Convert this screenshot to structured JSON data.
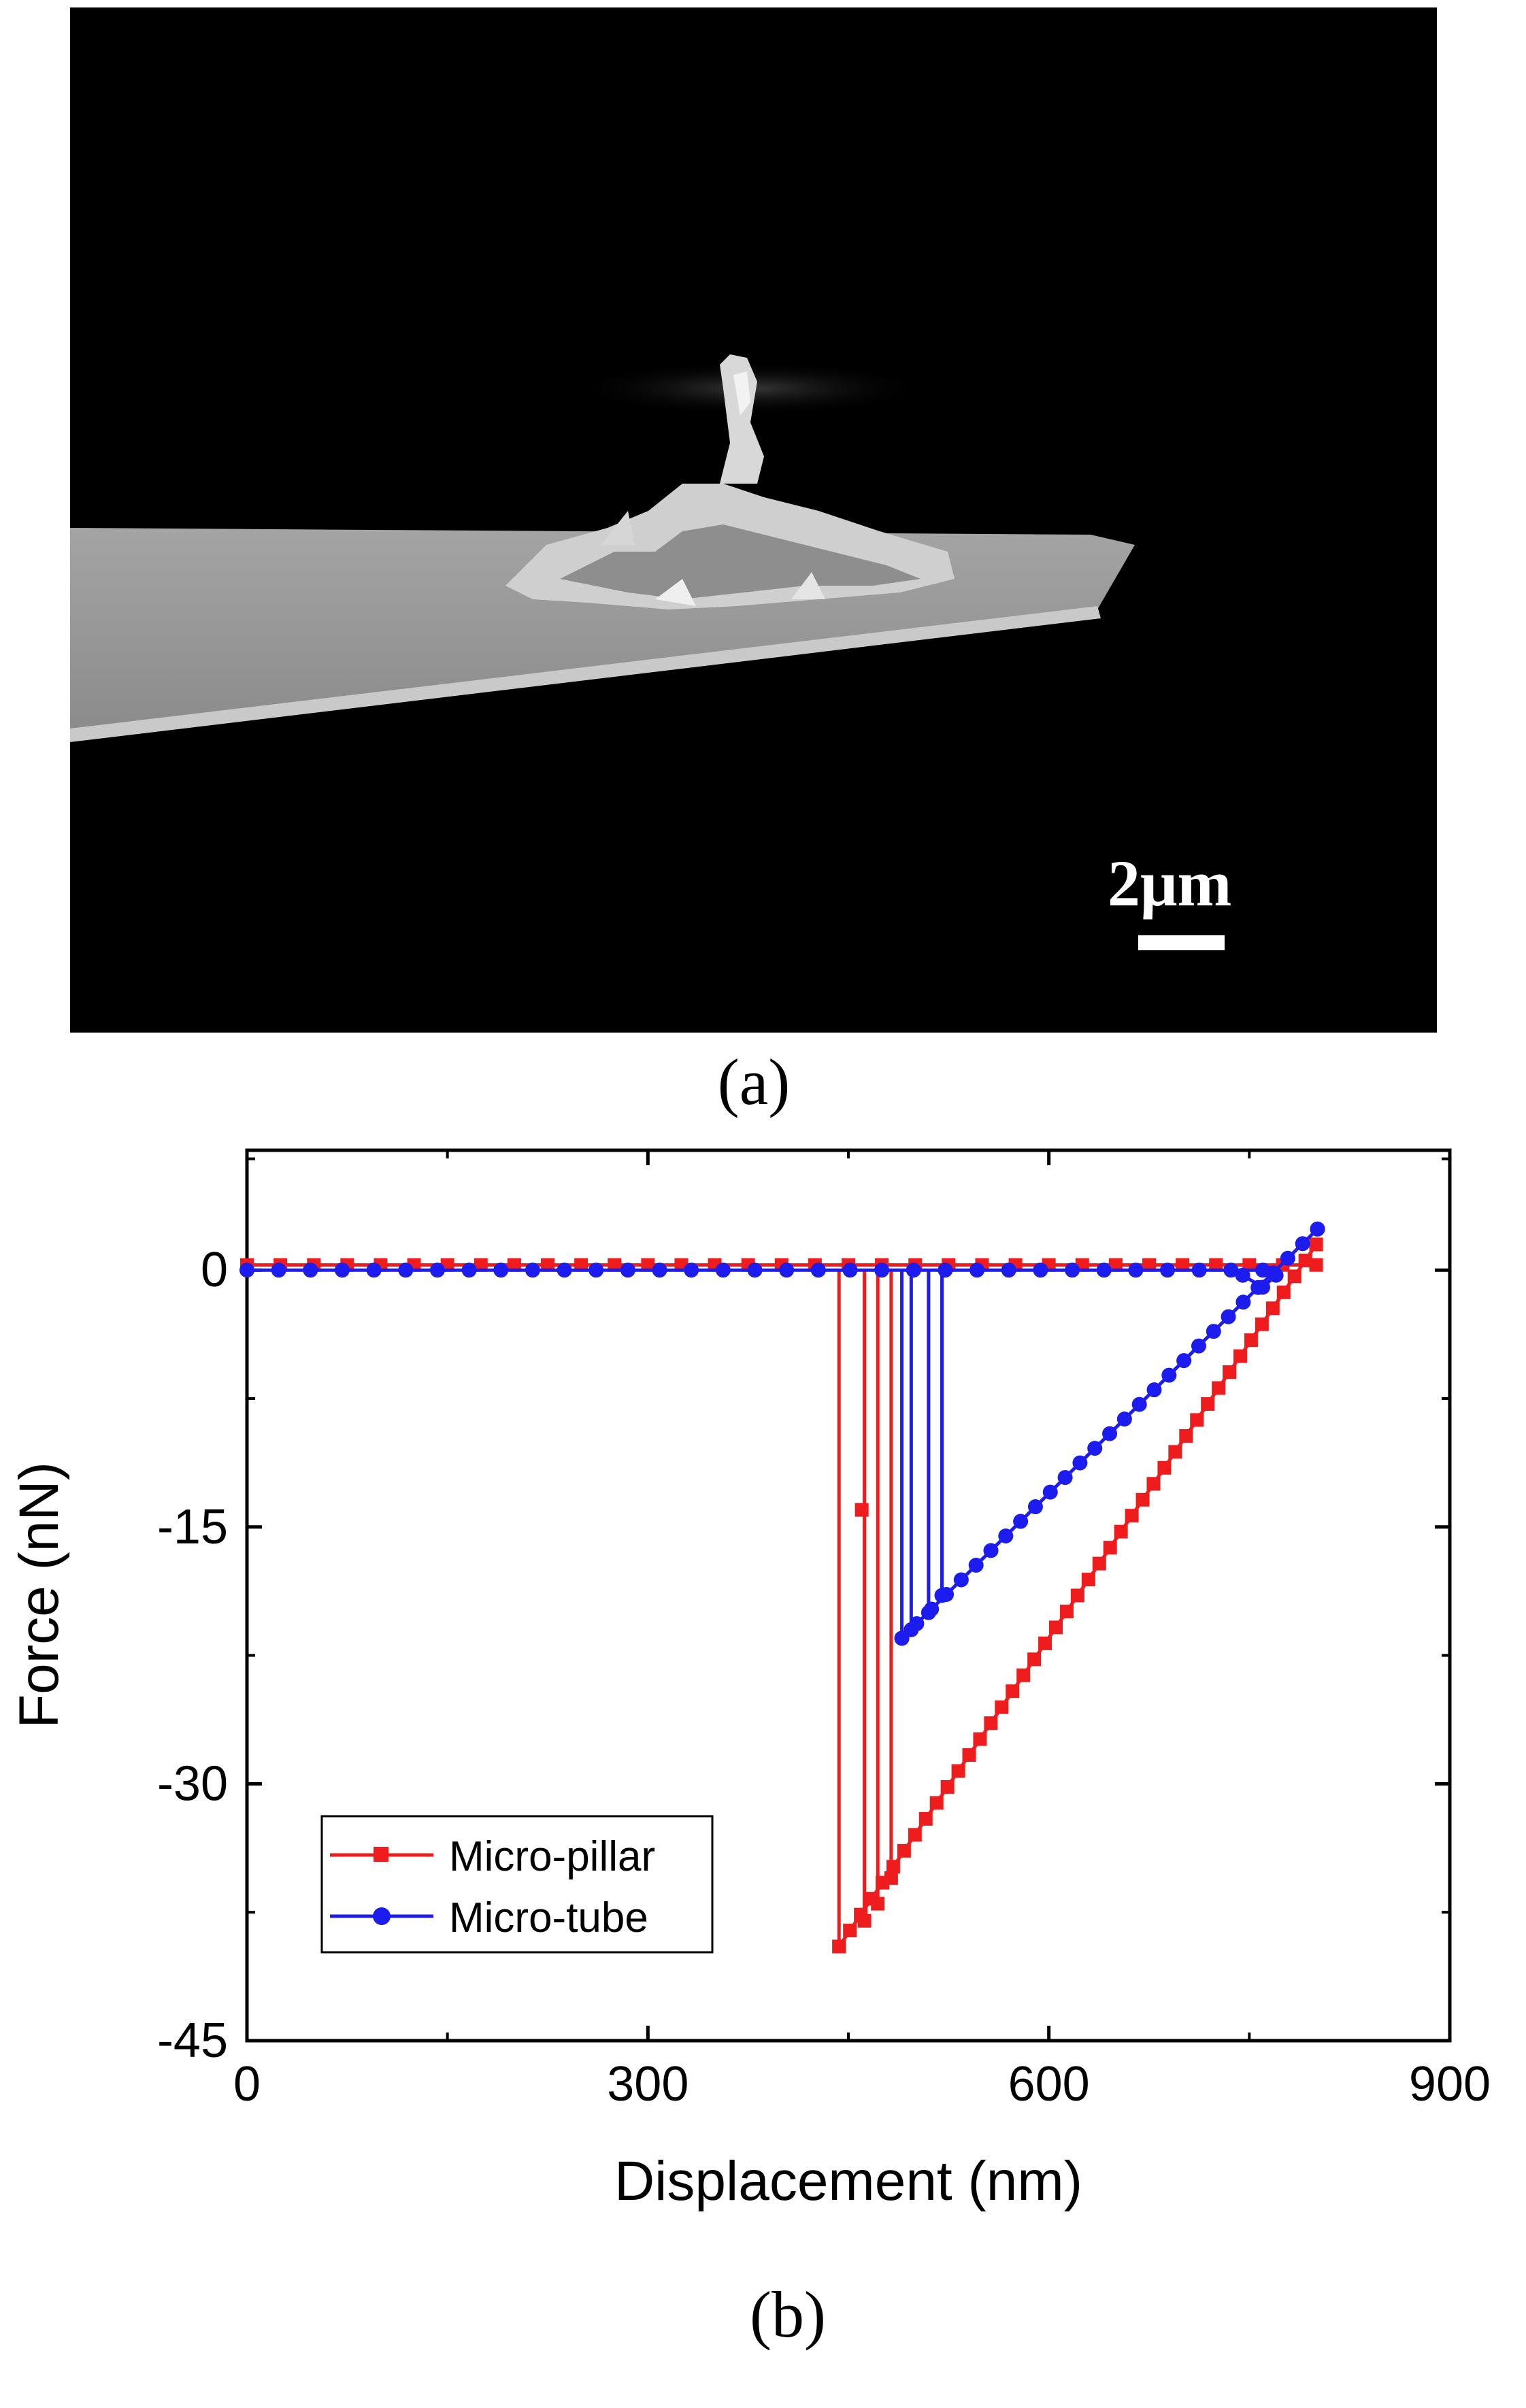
{
  "panel_a": {
    "label": "(a)",
    "scale_label": "2μm",
    "image_desc": "sem-micrograph"
  },
  "panel_b": {
    "label": "(b)"
  },
  "chart_data": {
    "type": "line",
    "xlabel": "Displacement (nm)",
    "ylabel": "Force (nN)",
    "xlim": [
      0,
      900
    ],
    "ylim": [
      -45,
      7
    ],
    "xticks": [
      0,
      300,
      600,
      900
    ],
    "yticks": [
      0,
      -15,
      -30,
      -45
    ],
    "legend_position": "bottom-left",
    "colors": {
      "pillar": "#ee1c1c",
      "tube": "#1c1cee"
    },
    "series": [
      {
        "name": "Micro-pillar",
        "marker": "square",
        "approach": {
          "x": [
            0,
            800
          ],
          "y": [
            0.3,
            0.3
          ]
        },
        "retract_line": {
          "x": [
            800,
            443
          ],
          "y": [
            1.5,
            -39.5
          ]
        },
        "pulloff": [
          {
            "x": 443,
            "y": -39.5
          },
          {
            "x": 462,
            "y": -38.0
          },
          {
            "x": 472,
            "y": -37.0
          },
          {
            "x": 482,
            "y": -35.5
          }
        ],
        "outlier": {
          "x": 460,
          "y": -14
        }
      },
      {
        "name": "Micro-tube",
        "marker": "circle",
        "approach": {
          "x": [
            0,
            760
          ],
          "y": [
            0,
            0
          ]
        },
        "dip": {
          "x": [
            745,
            760,
            770
          ],
          "y": [
            -0.3,
            -1.0,
            -0.3
          ]
        },
        "retract_line": {
          "x": [
            801,
            490
          ],
          "y": [
            2.4,
            -21.5
          ]
        },
        "pulloff": [
          {
            "x": 490,
            "y": -21.5
          },
          {
            "x": 497,
            "y": -21.0
          },
          {
            "x": 510,
            "y": -20.0
          },
          {
            "x": 520,
            "y": -19.0
          }
        ]
      }
    ]
  }
}
